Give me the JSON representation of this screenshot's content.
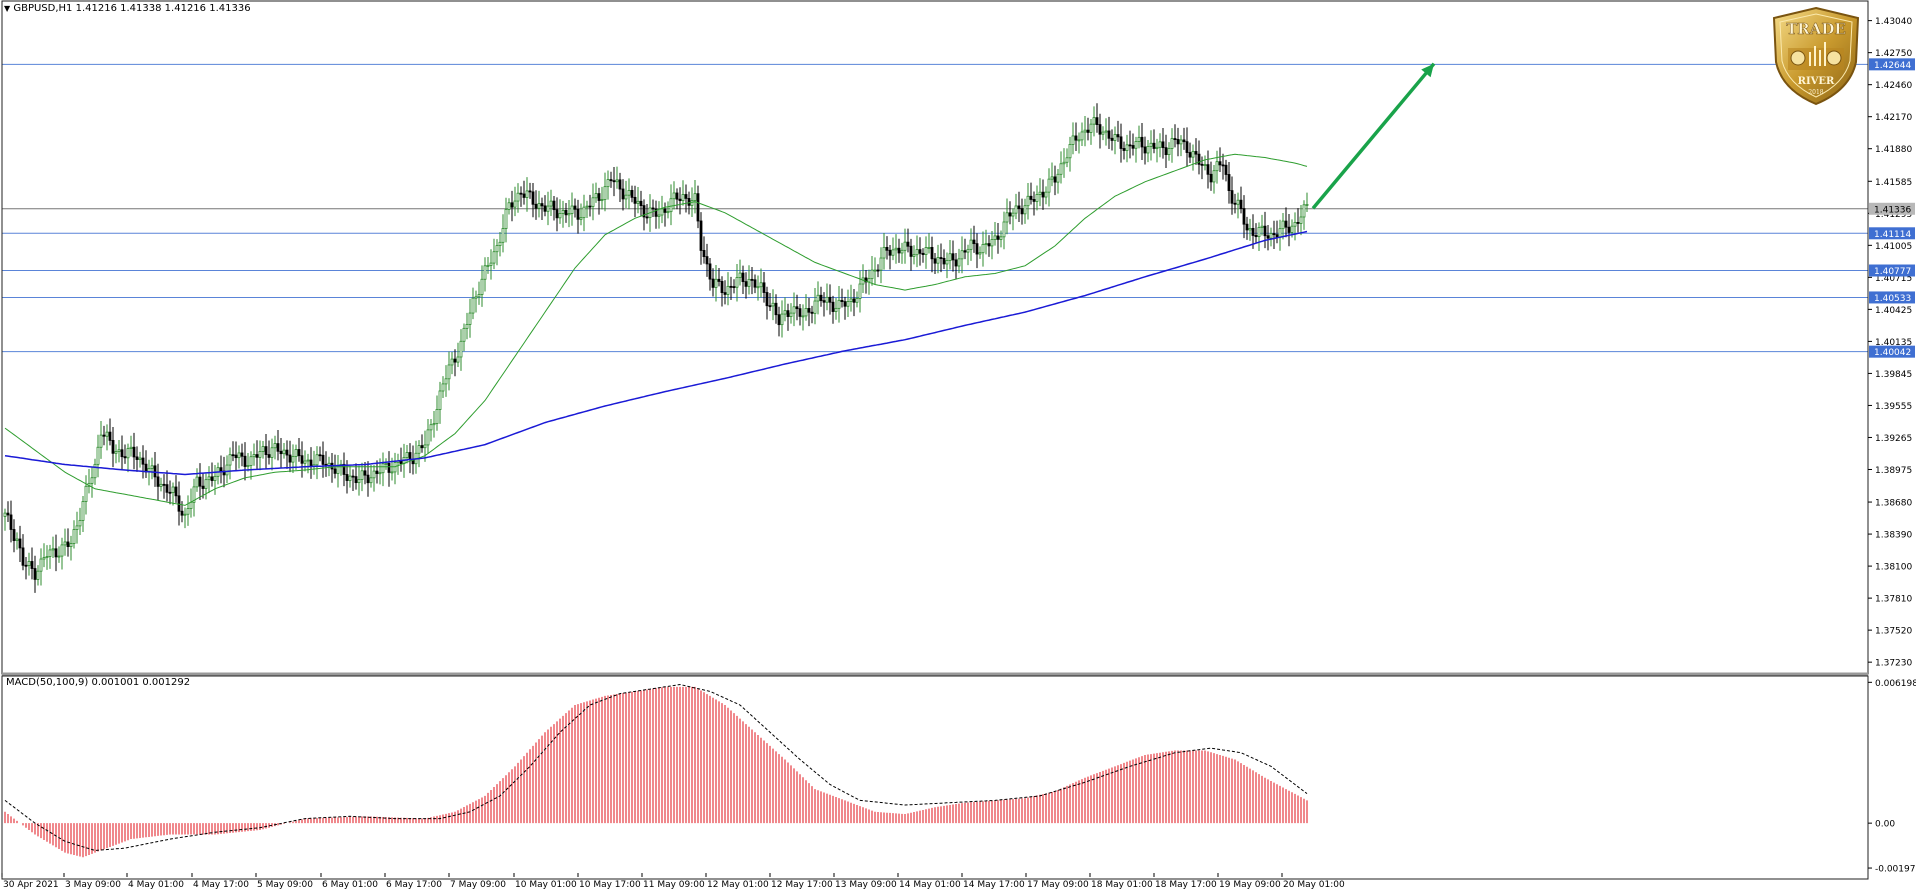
{
  "header": {
    "symbol_label": "GBPUSD,H1",
    "ohlc_label": "1.41216 1.41338 1.41216 1.41336"
  },
  "macd_header": {
    "label": "MACD(50,100,9) 0.001001 0.001292"
  },
  "logo": {
    "top_text": "TRADE",
    "bottom_text": "RIVER",
    "year": "2018"
  },
  "colors": {
    "background": "#ffffff",
    "bull_candle": "#2e8b2e",
    "bear_candle": "#000000",
    "ma_fast": "#2e9d2e",
    "ma_slow": "#1a1ad6",
    "level_line": "#5a84d8",
    "level_badge": "#3f6fd2",
    "current_badge": "#b8b8b8",
    "arrow": "#19a34a",
    "macd_hist": "#e0101a",
    "macd_signal": "#000000"
  },
  "chart_data": [
    {
      "type": "candlestick",
      "title": "GBPUSD,H1",
      "ylim": [
        1.3715,
        1.431
      ],
      "y_ticks": [
        "1.43040",
        "1.42750",
        "1.42460",
        "1.42170",
        "1.41880",
        "1.41585",
        "1.41295",
        "1.41005",
        "1.40715",
        "1.40425",
        "1.40135",
        "1.39845",
        "1.39555",
        "1.39265",
        "1.38975",
        "1.38680",
        "1.38390",
        "1.38100",
        "1.37810",
        "1.37520",
        "1.37230"
      ],
      "y_tick_values": [
        1.4304,
        1.4275,
        1.4246,
        1.4217,
        1.4188,
        1.41585,
        1.41295,
        1.41005,
        1.40715,
        1.40425,
        1.40135,
        1.39845,
        1.39555,
        1.39265,
        1.38975,
        1.3868,
        1.3839,
        1.381,
        1.3781,
        1.3752,
        1.3723
      ],
      "x_labels": [
        "30 Apr 2021",
        "3 May 09:00",
        "4 May 01:00",
        "4 May 17:00",
        "5 May 09:00",
        "6 May 01:00",
        "6 May 17:00",
        "7 May 09:00",
        "10 May 01:00",
        "10 May 17:00",
        "11 May 09:00",
        "12 May 01:00",
        "12 May 17:00",
        "13 May 09:00",
        "14 May 01:00",
        "14 May 17:00",
        "17 May 09:00",
        "18 May 01:00",
        "18 May 17:00",
        "19 May 09:00",
        "20 May 01:00"
      ],
      "price_path": [
        [
          0,
          1.3855
        ],
        [
          4,
          1.3835
        ],
        [
          6,
          1.3812
        ],
        [
          10,
          1.3805
        ],
        [
          14,
          1.382
        ],
        [
          18,
          1.3825
        ],
        [
          22,
          1.383
        ],
        [
          26,
          1.3868
        ],
        [
          30,
          1.39
        ],
        [
          32,
          1.3935
        ],
        [
          36,
          1.3915
        ],
        [
          44,
          1.391
        ],
        [
          50,
          1.389
        ],
        [
          56,
          1.3875
        ],
        [
          60,
          1.3855
        ],
        [
          64,
          1.3885
        ],
        [
          70,
          1.389
        ],
        [
          76,
          1.391
        ],
        [
          82,
          1.3905
        ],
        [
          86,
          1.3915
        ],
        [
          90,
          1.3915
        ],
        [
          96,
          1.391
        ],
        [
          100,
          1.3905
        ],
        [
          106,
          1.3905
        ],
        [
          112,
          1.3895
        ],
        [
          118,
          1.3888
        ],
        [
          124,
          1.3895
        ],
        [
          130,
          1.3902
        ],
        [
          136,
          1.391
        ],
        [
          140,
          1.392
        ],
        [
          144,
          1.3955
        ],
        [
          148,
          1.399
        ],
        [
          152,
          1.401
        ],
        [
          156,
          1.405
        ],
        [
          160,
          1.4075
        ],
        [
          164,
          1.41
        ],
        [
          168,
          1.4135
        ],
        [
          172,
          1.415
        ],
        [
          176,
          1.414
        ],
        [
          180,
          1.4135
        ],
        [
          186,
          1.413
        ],
        [
          192,
          1.413
        ],
        [
          198,
          1.4145
        ],
        [
          202,
          1.416
        ],
        [
          206,
          1.415
        ],
        [
          210,
          1.414
        ],
        [
          214,
          1.413
        ],
        [
          218,
          1.4128
        ],
        [
          222,
          1.414
        ],
        [
          226,
          1.4145
        ],
        [
          230,
          1.414
        ],
        [
          232,
          1.41
        ],
        [
          236,
          1.4065
        ],
        [
          240,
          1.406
        ],
        [
          244,
          1.4068
        ],
        [
          248,
          1.407
        ],
        [
          252,
          1.406
        ],
        [
          256,
          1.4045
        ],
        [
          258,
          1.403
        ],
        [
          262,
          1.4045
        ],
        [
          266,
          1.4035
        ],
        [
          270,
          1.405
        ],
        [
          274,
          1.405
        ],
        [
          278,
          1.4045
        ],
        [
          282,
          1.405
        ],
        [
          286,
          1.4065
        ],
        [
          290,
          1.408
        ],
        [
          294,
          1.4095
        ],
        [
          298,
          1.4098
        ],
        [
          302,
          1.4095
        ],
        [
          306,
          1.4095
        ],
        [
          310,
          1.409
        ],
        [
          314,
          1.4085
        ],
        [
          318,
          1.409
        ],
        [
          322,
          1.41
        ],
        [
          326,
          1.4098
        ],
        [
          330,
          1.4105
        ],
        [
          334,
          1.4125
        ],
        [
          338,
          1.4135
        ],
        [
          342,
          1.414
        ],
        [
          346,
          1.415
        ],
        [
          350,
          1.416
        ],
        [
          354,
          1.4185
        ],
        [
          358,
          1.42
        ],
        [
          362,
          1.421
        ],
        [
          366,
          1.4205
        ],
        [
          370,
          1.4195
        ],
        [
          374,
          1.419
        ],
        [
          378,
          1.4192
        ],
        [
          382,
          1.419
        ],
        [
          386,
          1.4188
        ],
        [
          390,
          1.4195
        ],
        [
          394,
          1.419
        ],
        [
          398,
          1.4175
        ],
        [
          402,
          1.4165
        ],
        [
          406,
          1.4175
        ],
        [
          408,
          1.415
        ],
        [
          412,
          1.413
        ],
        [
          414,
          1.4115
        ],
        [
          418,
          1.4112
        ],
        [
          422,
          1.411
        ],
        [
          426,
          1.4115
        ],
        [
          430,
          1.412
        ],
        [
          434,
          1.4134
        ]
      ],
      "ma_fast": [
        [
          0,
          1.3935
        ],
        [
          10,
          1.3915
        ],
        [
          20,
          1.3895
        ],
        [
          30,
          1.388
        ],
        [
          40,
          1.3875
        ],
        [
          50,
          1.387
        ],
        [
          60,
          1.3865
        ],
        [
          70,
          1.388
        ],
        [
          80,
          1.389
        ],
        [
          90,
          1.3895
        ],
        [
          100,
          1.3897
        ],
        [
          110,
          1.39
        ],
        [
          120,
          1.39
        ],
        [
          130,
          1.39
        ],
        [
          140,
          1.391
        ],
        [
          150,
          1.393
        ],
        [
          160,
          1.396
        ],
        [
          170,
          1.4
        ],
        [
          180,
          1.404
        ],
        [
          190,
          1.408
        ],
        [
          200,
          1.411
        ],
        [
          210,
          1.4125
        ],
        [
          220,
          1.4135
        ],
        [
          230,
          1.414
        ],
        [
          240,
          1.413
        ],
        [
          250,
          1.4115
        ],
        [
          260,
          1.41
        ],
        [
          270,
          1.4085
        ],
        [
          280,
          1.4075
        ],
        [
          290,
          1.4065
        ],
        [
          300,
          1.406
        ],
        [
          310,
          1.4065
        ],
        [
          320,
          1.4072
        ],
        [
          330,
          1.4075
        ],
        [
          340,
          1.4082
        ],
        [
          350,
          1.41
        ],
        [
          360,
          1.4125
        ],
        [
          370,
          1.4145
        ],
        [
          380,
          1.4158
        ],
        [
          390,
          1.4168
        ],
        [
          400,
          1.4178
        ],
        [
          410,
          1.4183
        ],
        [
          420,
          1.418
        ],
        [
          430,
          1.4175
        ],
        [
          434,
          1.4172
        ]
      ],
      "ma_slow": [
        [
          0,
          1.391
        ],
        [
          20,
          1.3902
        ],
        [
          40,
          1.3897
        ],
        [
          60,
          1.3893
        ],
        [
          80,
          1.3897
        ],
        [
          100,
          1.39
        ],
        [
          120,
          1.3902
        ],
        [
          140,
          1.3908
        ],
        [
          160,
          1.392
        ],
        [
          180,
          1.394
        ],
        [
          200,
          1.3955
        ],
        [
          220,
          1.3968
        ],
        [
          240,
          1.398
        ],
        [
          260,
          1.3993
        ],
        [
          280,
          1.4005
        ],
        [
          300,
          1.4015
        ],
        [
          320,
          1.4028
        ],
        [
          340,
          1.404
        ],
        [
          360,
          1.4055
        ],
        [
          380,
          1.4072
        ],
        [
          400,
          1.4088
        ],
        [
          420,
          1.4105
        ],
        [
          434,
          1.4113
        ]
      ],
      "price_levels": [
        {
          "label": "1.42644",
          "value": 1.42644
        },
        {
          "label": "1.41114",
          "value": 1.41114
        },
        {
          "label": "1.40777",
          "value": 1.40777
        },
        {
          "label": "1.40533",
          "value": 1.40533
        },
        {
          "label": "1.40042",
          "value": 1.40042
        }
      ],
      "current_price": {
        "label": "1.41336",
        "value": 1.41336
      },
      "arrow": {
        "from": [
          434,
          1.4134
        ],
        "to": [
          464,
          1.4265
        ]
      }
    },
    {
      "type": "bar",
      "title": "MACD(50,100,9) 0.001001 0.001292",
      "ylim": [
        -0.00215,
        0.0063
      ],
      "y_ticks": [
        "0.006198",
        "0.00",
        "-0.001976"
      ],
      "y_tick_values": [
        0.006198,
        0.0,
        -0.001976
      ],
      "histogram_path": [
        [
          0,
          0.0005
        ],
        [
          10,
          -0.0005
        ],
        [
          20,
          -0.0013
        ],
        [
          26,
          -0.0015
        ],
        [
          32,
          -0.0012
        ],
        [
          42,
          -0.0007
        ],
        [
          55,
          -0.0005
        ],
        [
          70,
          -0.0005
        ],
        [
          85,
          -0.0003
        ],
        [
          100,
          0.0002
        ],
        [
          120,
          0.0003
        ],
        [
          140,
          0.0002
        ],
        [
          150,
          0.0005
        ],
        [
          160,
          0.0012
        ],
        [
          170,
          0.0025
        ],
        [
          180,
          0.004
        ],
        [
          190,
          0.0052
        ],
        [
          200,
          0.0056
        ],
        [
          210,
          0.0058
        ],
        [
          220,
          0.006
        ],
        [
          230,
          0.006
        ],
        [
          240,
          0.0052
        ],
        [
          250,
          0.004
        ],
        [
          260,
          0.0028
        ],
        [
          270,
          0.0015
        ],
        [
          280,
          0.001
        ],
        [
          290,
          0.0005
        ],
        [
          300,
          0.0004
        ],
        [
          310,
          0.0007
        ],
        [
          320,
          0.0009
        ],
        [
          330,
          0.001
        ],
        [
          340,
          0.0011
        ],
        [
          350,
          0.0014
        ],
        [
          360,
          0.002
        ],
        [
          370,
          0.0025
        ],
        [
          380,
          0.003
        ],
        [
          390,
          0.0032
        ],
        [
          400,
          0.0032
        ],
        [
          410,
          0.0028
        ],
        [
          420,
          0.002
        ],
        [
          434,
          0.001
        ]
      ],
      "signal_path": [
        [
          0,
          0.001
        ],
        [
          10,
          0.0
        ],
        [
          20,
          -0.0008
        ],
        [
          30,
          -0.0012
        ],
        [
          40,
          -0.0011
        ],
        [
          55,
          -0.0007
        ],
        [
          70,
          -0.0004
        ],
        [
          85,
          -0.0002
        ],
        [
          100,
          0.0002
        ],
        [
          115,
          0.0003
        ],
        [
          130,
          0.0002
        ],
        [
          145,
          0.0002
        ],
        [
          155,
          0.0005
        ],
        [
          165,
          0.0012
        ],
        [
          175,
          0.0025
        ],
        [
          185,
          0.004
        ],
        [
          195,
          0.0052
        ],
        [
          205,
          0.0057
        ],
        [
          215,
          0.0059
        ],
        [
          225,
          0.0061
        ],
        [
          235,
          0.0058
        ],
        [
          245,
          0.0052
        ],
        [
          255,
          0.004
        ],
        [
          265,
          0.0028
        ],
        [
          275,
          0.0017
        ],
        [
          285,
          0.001
        ],
        [
          300,
          0.0008
        ],
        [
          315,
          0.0009
        ],
        [
          330,
          0.001
        ],
        [
          345,
          0.0012
        ],
        [
          360,
          0.0018
        ],
        [
          375,
          0.0025
        ],
        [
          390,
          0.0031
        ],
        [
          402,
          0.0033
        ],
        [
          412,
          0.0031
        ],
        [
          422,
          0.0025
        ],
        [
          434,
          0.0013
        ]
      ]
    }
  ]
}
